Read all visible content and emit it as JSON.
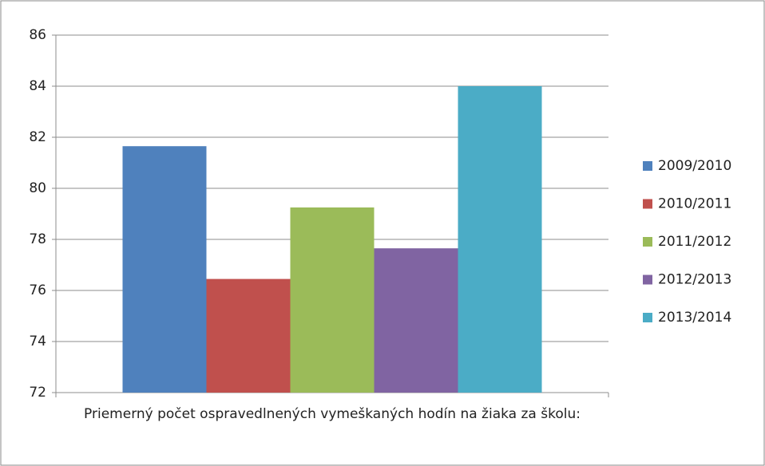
{
  "chart_data": {
    "type": "bar",
    "categories": [
      "Priemerný počet ospravedlnených vymeškaných hodín na žiaka za školu:"
    ],
    "series": [
      {
        "name": "2009/2010",
        "color": "#4f81bd",
        "values": [
          81.65
        ]
      },
      {
        "name": "2010/2011",
        "color": "#c0504d",
        "values": [
          76.45
        ]
      },
      {
        "name": "2011/2012",
        "color": "#9bbb59",
        "values": [
          79.25
        ]
      },
      {
        "name": "2012/2013",
        "color": "#8064a2",
        "values": [
          77.65
        ]
      },
      {
        "name": "2013/2014",
        "color": "#4bacc6",
        "values": [
          84
        ]
      }
    ],
    "ylim": [
      72,
      86
    ],
    "yticks": [
      72,
      74,
      76,
      78,
      80,
      82,
      84,
      86
    ],
    "grid": true,
    "legend": "right"
  }
}
